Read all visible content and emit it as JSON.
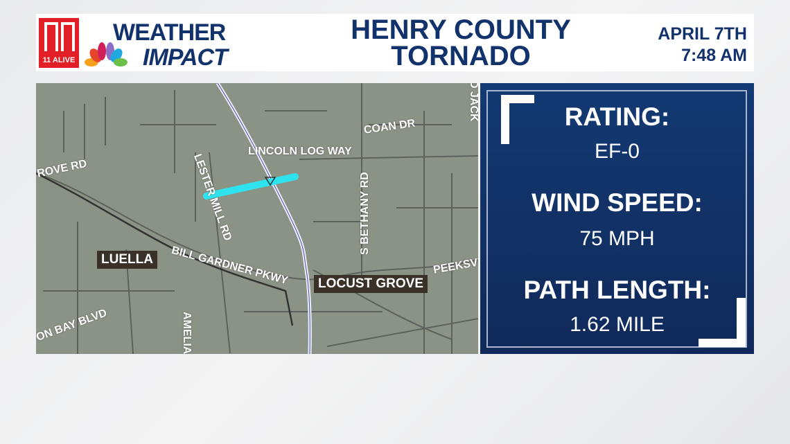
{
  "header": {
    "station_logo": "11 ALIVE",
    "brand_line1": "WEATHER",
    "brand_line2": "IMPACT",
    "title_line1": "HENRY COUNTY",
    "title_line2": "TORNADO",
    "date": "APRIL 7TH",
    "time": "7:48 AM"
  },
  "map": {
    "road_labels": [
      "COAN DR",
      "LINCOLN LOG WAY",
      "ROVE RD",
      "LESTER MILL RD",
      "S BETHANY RD",
      "BILL GARDNER PKWY",
      "PEEKSVI",
      "ON BAY BLVD",
      "AMELIA",
      "D JACK"
    ],
    "towns": [
      "LUELLA",
      "LOCUST GROVE"
    ],
    "tornado_path_color": "#2fe3ee"
  },
  "stats": [
    {
      "label": "RATING:",
      "value": "EF-0"
    },
    {
      "label": "WIND SPEED:",
      "value": "75 MPH"
    },
    {
      "label": "PATH LENGTH:",
      "value": "1.62 MILE"
    }
  ],
  "colors": {
    "navy": "#12326b",
    "logo_red": "#e21f26"
  }
}
